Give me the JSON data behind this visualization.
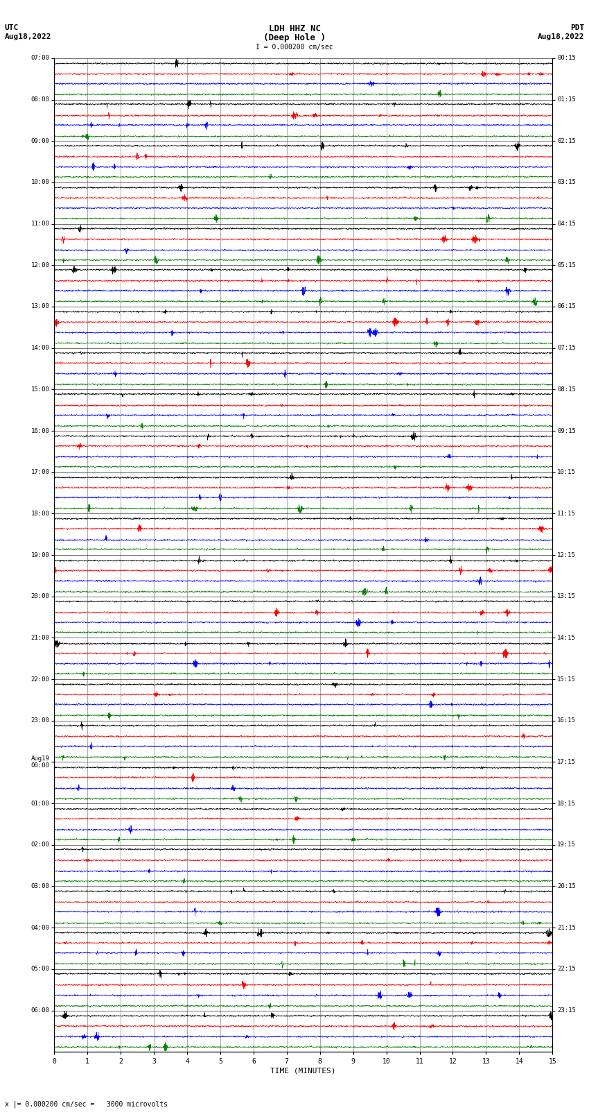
{
  "title_line1": "LDH HHZ NC",
  "title_line2": "(Deep Hole )",
  "scale_label": "I = 0.000200 cm/sec",
  "footer_label": "x |= 0.000200 cm/sec =   3000 microvolts",
  "utc_label": "UTC",
  "utc_date": "Aug18,2022",
  "pdt_label": "PDT",
  "pdt_date": "Aug18,2022",
  "xlabel": "TIME (MINUTES)",
  "left_times": [
    "07:00",
    "08:00",
    "09:00",
    "10:00",
    "11:00",
    "12:00",
    "13:00",
    "14:00",
    "15:00",
    "16:00",
    "17:00",
    "18:00",
    "19:00",
    "20:00",
    "21:00",
    "22:00",
    "23:00",
    "Aug19\n00:00",
    "01:00",
    "02:00",
    "03:00",
    "04:00",
    "05:00",
    "06:00"
  ],
  "right_times": [
    "00:15",
    "01:15",
    "02:15",
    "03:15",
    "04:15",
    "05:15",
    "06:15",
    "07:15",
    "08:15",
    "09:15",
    "10:15",
    "11:15",
    "12:15",
    "13:15",
    "14:15",
    "15:15",
    "16:15",
    "17:15",
    "18:15",
    "19:15",
    "20:15",
    "21:15",
    "22:15",
    "23:15"
  ],
  "n_rows": 24,
  "n_traces_per_row": 4,
  "trace_colors": [
    "black",
    "red",
    "blue",
    "green"
  ],
  "time_minutes": 15,
  "background_color": "white",
  "noise_seed": 42
}
